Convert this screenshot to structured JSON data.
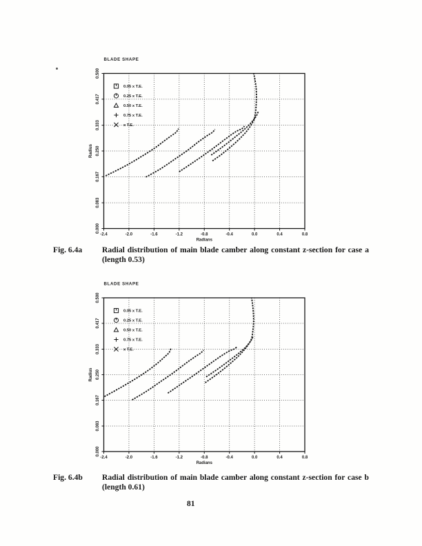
{
  "page": {
    "number": "81"
  },
  "figures": [
    {
      "label": "Fig. 6.4a",
      "text": "Radial distribution of main blade camber along constant z-section for case a (length 0.53)"
    },
    {
      "label": "Fig. 6.4b",
      "text": "Radial distribution of main blade camber along constant z-section for case b (length 0.61)"
    }
  ],
  "colors": {
    "ink": "#151515",
    "grid": "#3d3d3d"
  },
  "chart_data": [
    {
      "type": "line",
      "title": "BLADE SHAPE",
      "xlabel": "Radians",
      "ylabel": "Radius",
      "xlim": [
        -2.4,
        0.8
      ],
      "ylim": [
        0,
        0.5
      ],
      "xticks": [
        -2.4,
        -2.0,
        -1.6,
        -1.2,
        -0.8,
        -0.4,
        0.0,
        0.4,
        0.8
      ],
      "xtick_labels": [
        "-2.4",
        "-2.0",
        "-1.6",
        "-1.2",
        "-0.8",
        "-0.4",
        "0.0",
        "0.4",
        "0.8"
      ],
      "yticks": [
        0,
        0.083,
        0.167,
        0.25,
        0.333,
        0.417,
        0.5
      ],
      "ytick_labels": [
        "0.000",
        "0.083",
        "0.167",
        "0.250",
        "0.333",
        "0.417",
        "0.500"
      ],
      "grid": true,
      "legend_position": "upper-left",
      "series": [
        {
          "name": "0.05 x T.E.",
          "marker": "square",
          "points": [
            [
              -0.67,
              0.218
            ],
            [
              -0.52,
              0.24
            ],
            [
              -0.38,
              0.263
            ],
            [
              -0.24,
              0.289
            ],
            [
              -0.12,
              0.315
            ],
            [
              -0.03,
              0.342
            ],
            [
              0.01,
              0.365
            ],
            [
              0.025,
              0.395
            ],
            [
              0.03,
              0.425
            ],
            [
              0.025,
              0.455
            ],
            [
              0.005,
              0.482
            ],
            [
              -0.015,
              0.5
            ]
          ]
        },
        {
          "name": "0.25 x T.E.",
          "marker": "circle",
          "points": [
            [
              -0.69,
              0.237
            ],
            [
              -0.55,
              0.257
            ],
            [
              -0.42,
              0.277
            ],
            [
              -0.29,
              0.298
            ],
            [
              -0.17,
              0.318
            ],
            [
              -0.06,
              0.34
            ],
            [
              0.02,
              0.36
            ],
            [
              0.06,
              0.377
            ]
          ]
        },
        {
          "name": "0.50 x T.E.",
          "marker": "triangle",
          "points": [
            [
              -1.2,
              0.183
            ],
            [
              -1.0,
              0.21
            ],
            [
              -0.8,
              0.238
            ],
            [
              -0.61,
              0.266
            ],
            [
              -0.44,
              0.292
            ],
            [
              -0.3,
              0.312
            ],
            [
              -0.2,
              0.322
            ],
            [
              -0.16,
              0.33
            ]
          ]
        },
        {
          "name": "0.75 x T.E.",
          "marker": "plus",
          "points": [
            [
              -1.73,
              0.166
            ],
            [
              -1.5,
              0.192
            ],
            [
              -1.28,
              0.222
            ],
            [
              -1.06,
              0.253
            ],
            [
              -0.89,
              0.28
            ],
            [
              -0.75,
              0.3
            ],
            [
              -0.67,
              0.31
            ],
            [
              -0.63,
              0.32
            ]
          ]
        },
        {
          "name": "x T.E.",
          "marker": "x",
          "points": [
            [
              -2.37,
              0.17
            ],
            [
              -2.1,
              0.197
            ],
            [
              -1.85,
              0.226
            ],
            [
              -1.6,
              0.258
            ],
            [
              -1.44,
              0.282
            ],
            [
              -1.32,
              0.3
            ],
            [
              -1.25,
              0.31
            ],
            [
              -1.21,
              0.322
            ]
          ]
        }
      ]
    },
    {
      "type": "line",
      "title": "BLADE SHAPE",
      "xlabel": "Radians",
      "ylabel": "Radius",
      "xlim": [
        -2.4,
        0.8
      ],
      "ylim": [
        0,
        0.5
      ],
      "xticks": [
        -2.4,
        -2.0,
        -1.6,
        -1.2,
        -0.8,
        -0.4,
        0.0,
        0.4,
        0.8
      ],
      "xtick_labels": [
        "-2.4",
        "-2.0",
        "-1.6",
        "-1.2",
        "-0.8",
        "-0.4",
        "0.0",
        "0.4",
        "0.8"
      ],
      "yticks": [
        0,
        0.083,
        0.167,
        0.25,
        0.333,
        0.417,
        0.5
      ],
      "ytick_labels": [
        "0.000",
        "0.083",
        "0.167",
        "0.250",
        "0.333",
        "0.417",
        "0.500"
      ],
      "grid": true,
      "legend_position": "upper-left",
      "series": [
        {
          "name": "0.05 x T.E.",
          "marker": "square",
          "points": [
            [
              -0.785,
              0.224
            ],
            [
              -0.64,
              0.245
            ],
            [
              -0.5,
              0.267
            ],
            [
              -0.36,
              0.291
            ],
            [
              -0.23,
              0.316
            ],
            [
              -0.12,
              0.342
            ],
            [
              -0.05,
              0.366
            ],
            [
              -0.025,
              0.395
            ],
            [
              -0.015,
              0.425
            ],
            [
              -0.02,
              0.455
            ],
            [
              -0.032,
              0.48
            ],
            [
              -0.046,
              0.5
            ]
          ]
        },
        {
          "name": "0.25 x T.E.",
          "marker": "circle",
          "points": [
            [
              -0.77,
              0.243
            ],
            [
              -0.63,
              0.262
            ],
            [
              -0.5,
              0.281
            ],
            [
              -0.37,
              0.301
            ],
            [
              -0.25,
              0.32
            ],
            [
              -0.14,
              0.34
            ],
            [
              -0.06,
              0.36
            ],
            [
              -0.02,
              0.376
            ]
          ]
        },
        {
          "name": "0.50 x T.E.",
          "marker": "triangle",
          "points": [
            [
              -1.38,
              0.19
            ],
            [
              -1.18,
              0.218
            ],
            [
              -0.96,
              0.249
            ],
            [
              -0.74,
              0.281
            ],
            [
              -0.56,
              0.307
            ],
            [
              -0.42,
              0.325
            ],
            [
              -0.32,
              0.334
            ],
            [
              -0.28,
              0.341
            ]
          ]
        },
        {
          "name": "0.75 x T.E.",
          "marker": "plus",
          "points": [
            [
              -1.95,
              0.168
            ],
            [
              -1.72,
              0.196
            ],
            [
              -1.5,
              0.227
            ],
            [
              -1.28,
              0.258
            ],
            [
              -1.1,
              0.286
            ],
            [
              -0.95,
              0.308
            ],
            [
              -0.86,
              0.32
            ],
            [
              -0.81,
              0.33
            ]
          ]
        },
        {
          "name": "x T.E.",
          "marker": "x",
          "points": [
            [
              -2.39,
              0.179
            ],
            [
              -2.15,
              0.206
            ],
            [
              -1.9,
              0.236
            ],
            [
              -1.7,
              0.263
            ],
            [
              -1.53,
              0.29
            ],
            [
              -1.42,
              0.31
            ],
            [
              -1.36,
              0.322
            ],
            [
              -1.33,
              0.336
            ]
          ]
        }
      ]
    }
  ]
}
